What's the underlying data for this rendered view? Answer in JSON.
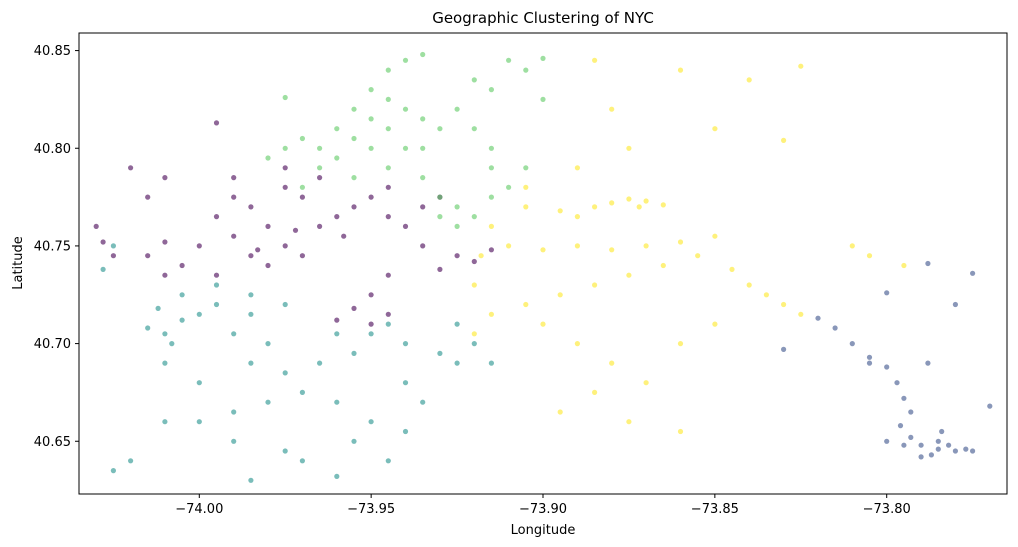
{
  "chart_data": {
    "type": "scatter",
    "title": "Geographic Clustering of NYC",
    "xlabel": "Longitude",
    "ylabel": "Latitude",
    "xlim": [
      -74.035,
      -73.765
    ],
    "ylim": [
      40.623,
      40.859
    ],
    "xticks": [
      -74.0,
      -73.95,
      -73.9,
      -73.85,
      -73.8
    ],
    "xtick_labels": [
      "−74.00",
      "−73.95",
      "−73.90",
      "−73.85",
      "−73.80"
    ],
    "yticks": [
      40.65,
      40.7,
      40.75,
      40.8,
      40.85
    ],
    "ytick_labels": [
      "40.65",
      "40.70",
      "40.75",
      "40.80",
      "40.85"
    ],
    "grid": false,
    "legend": "none",
    "point_opacity": 0.6,
    "series": [
      {
        "name": "cluster-0",
        "color": "#440154",
        "points": [
          [
            -73.99,
            40.775
          ],
          [
            -73.985,
            40.77
          ],
          [
            -73.975,
            40.78
          ],
          [
            -73.97,
            40.775
          ],
          [
            -73.995,
            40.765
          ],
          [
            -73.98,
            40.76
          ],
          [
            -73.99,
            40.755
          ],
          [
            -74.0,
            40.75
          ],
          [
            -73.985,
            40.745
          ],
          [
            -73.975,
            40.75
          ],
          [
            -73.965,
            40.76
          ],
          [
            -73.96,
            40.765
          ],
          [
            -74.005,
            40.74
          ],
          [
            -73.995,
            40.735
          ],
          [
            -74.01,
            40.735
          ],
          [
            -73.98,
            40.74
          ],
          [
            -73.97,
            40.745
          ],
          [
            -73.955,
            40.77
          ],
          [
            -73.95,
            40.775
          ],
          [
            -73.945,
            40.78
          ],
          [
            -73.965,
            40.785
          ],
          [
            -73.975,
            40.79
          ],
          [
            -74.015,
            40.745
          ],
          [
            -74.01,
            40.752
          ],
          [
            -73.99,
            40.785
          ],
          [
            -73.958,
            40.755
          ],
          [
            -73.945,
            40.765
          ],
          [
            -73.935,
            40.77
          ],
          [
            -73.94,
            40.76
          ],
          [
            -73.93,
            40.775
          ],
          [
            -73.925,
            40.745
          ],
          [
            -73.92,
            40.742
          ],
          [
            -73.93,
            40.738
          ],
          [
            -73.935,
            40.75
          ],
          [
            -73.915,
            40.748
          ],
          [
            -73.945,
            40.735
          ],
          [
            -73.95,
            40.725
          ],
          [
            -73.955,
            40.718
          ],
          [
            -73.95,
            40.71
          ],
          [
            -73.945,
            40.715
          ],
          [
            -73.96,
            40.712
          ],
          [
            -74.03,
            40.76
          ],
          [
            -74.025,
            40.745
          ],
          [
            -74.02,
            40.79
          ],
          [
            -74.015,
            40.775
          ],
          [
            -74.01,
            40.785
          ],
          [
            -73.995,
            40.813
          ],
          [
            -74.028,
            40.752
          ],
          [
            -73.983,
            40.748
          ],
          [
            -73.972,
            40.758
          ]
        ]
      },
      {
        "name": "cluster-1",
        "color": "#3b528b",
        "points": [
          [
            -73.82,
            40.713
          ],
          [
            -73.815,
            40.708
          ],
          [
            -73.81,
            40.7
          ],
          [
            -73.805,
            40.693
          ],
          [
            -73.8,
            40.688
          ],
          [
            -73.797,
            40.68
          ],
          [
            -73.795,
            40.672
          ],
          [
            -73.793,
            40.665
          ],
          [
            -73.796,
            40.658
          ],
          [
            -73.793,
            40.652
          ],
          [
            -73.79,
            40.648
          ],
          [
            -73.785,
            40.646
          ],
          [
            -73.78,
            40.645
          ],
          [
            -73.777,
            40.646
          ],
          [
            -73.782,
            40.648
          ],
          [
            -73.787,
            40.643
          ],
          [
            -73.775,
            40.645
          ],
          [
            -73.79,
            40.642
          ],
          [
            -73.8,
            40.65
          ],
          [
            -73.785,
            40.65
          ],
          [
            -73.795,
            40.648
          ],
          [
            -73.77,
            40.668
          ],
          [
            -73.775,
            40.736
          ],
          [
            -73.788,
            40.741
          ],
          [
            -73.78,
            40.72
          ],
          [
            -73.8,
            40.726
          ],
          [
            -73.805,
            40.69
          ],
          [
            -73.83,
            40.697
          ],
          [
            -73.788,
            40.69
          ],
          [
            -73.784,
            40.655
          ]
        ]
      },
      {
        "name": "cluster-2",
        "color": "#21918c",
        "points": [
          [
            -74.015,
            40.708
          ],
          [
            -74.01,
            40.705
          ],
          [
            -74.005,
            40.712
          ],
          [
            -74.0,
            40.715
          ],
          [
            -73.995,
            40.72
          ],
          [
            -74.012,
            40.718
          ],
          [
            -74.005,
            40.725
          ],
          [
            -73.995,
            40.73
          ],
          [
            -73.985,
            40.725
          ],
          [
            -73.975,
            40.72
          ],
          [
            -73.985,
            40.715
          ],
          [
            -74.008,
            40.7
          ],
          [
            -73.99,
            40.705
          ],
          [
            -73.98,
            40.7
          ],
          [
            -73.985,
            40.69
          ],
          [
            -73.975,
            40.685
          ],
          [
            -73.965,
            40.69
          ],
          [
            -73.955,
            40.695
          ],
          [
            -73.95,
            40.705
          ],
          [
            -73.94,
            40.7
          ],
          [
            -73.93,
            40.695
          ],
          [
            -73.925,
            40.69
          ],
          [
            -73.945,
            40.71
          ],
          [
            -73.96,
            40.705
          ],
          [
            -73.97,
            40.675
          ],
          [
            -73.98,
            40.67
          ],
          [
            -73.99,
            40.665
          ],
          [
            -74.0,
            40.66
          ],
          [
            -73.96,
            40.67
          ],
          [
            -73.95,
            40.66
          ],
          [
            -73.955,
            40.65
          ],
          [
            -73.94,
            40.68
          ],
          [
            -73.935,
            40.67
          ],
          [
            -73.945,
            40.64
          ],
          [
            -73.97,
            40.64
          ],
          [
            -73.99,
            40.65
          ],
          [
            -74.01,
            40.66
          ],
          [
            -74.02,
            40.64
          ],
          [
            -74.025,
            40.635
          ],
          [
            -74.0,
            40.68
          ],
          [
            -74.01,
            40.69
          ],
          [
            -73.92,
            40.7
          ],
          [
            -73.915,
            40.69
          ],
          [
            -73.925,
            40.71
          ],
          [
            -74.028,
            40.738
          ],
          [
            -74.025,
            40.75
          ],
          [
            -73.985,
            40.63
          ],
          [
            -73.96,
            40.632
          ],
          [
            -73.975,
            40.645
          ],
          [
            -73.94,
            40.655
          ]
        ]
      },
      {
        "name": "cluster-3",
        "color": "#5ec962",
        "points": [
          [
            -73.945,
            40.84
          ],
          [
            -73.94,
            40.845
          ],
          [
            -73.935,
            40.848
          ],
          [
            -73.95,
            40.83
          ],
          [
            -73.945,
            40.825
          ],
          [
            -73.955,
            40.82
          ],
          [
            -73.95,
            40.815
          ],
          [
            -73.96,
            40.81
          ],
          [
            -73.955,
            40.805
          ],
          [
            -73.965,
            40.8
          ],
          [
            -73.96,
            40.795
          ],
          [
            -73.97,
            40.805
          ],
          [
            -73.975,
            40.8
          ],
          [
            -73.98,
            40.795
          ],
          [
            -73.95,
            40.8
          ],
          [
            -73.945,
            40.81
          ],
          [
            -73.94,
            40.82
          ],
          [
            -73.935,
            40.815
          ],
          [
            -73.93,
            40.81
          ],
          [
            -73.94,
            40.8
          ],
          [
            -73.945,
            40.79
          ],
          [
            -73.935,
            40.785
          ],
          [
            -73.93,
            40.775
          ],
          [
            -73.925,
            40.77
          ],
          [
            -73.92,
            40.765
          ],
          [
            -73.915,
            40.775
          ],
          [
            -73.925,
            40.76
          ],
          [
            -73.93,
            40.765
          ],
          [
            -73.91,
            40.78
          ],
          [
            -73.905,
            40.79
          ],
          [
            -73.915,
            40.8
          ],
          [
            -73.92,
            40.81
          ],
          [
            -73.925,
            40.82
          ],
          [
            -73.915,
            40.83
          ],
          [
            -73.92,
            40.835
          ],
          [
            -73.905,
            40.84
          ],
          [
            -73.9,
            40.846
          ],
          [
            -73.91,
            40.845
          ],
          [
            -73.9,
            40.825
          ],
          [
            -73.955,
            40.785
          ],
          [
            -73.965,
            40.79
          ],
          [
            -73.97,
            40.78
          ],
          [
            -73.975,
            40.826
          ],
          [
            -73.915,
            40.79
          ],
          [
            -73.935,
            40.8
          ]
        ]
      },
      {
        "name": "cluster-4",
        "color": "#fde725",
        "points": [
          [
            -73.915,
            40.76
          ],
          [
            -73.905,
            40.77
          ],
          [
            -73.895,
            40.768
          ],
          [
            -73.89,
            40.765
          ],
          [
            -73.885,
            40.77
          ],
          [
            -73.88,
            40.772
          ],
          [
            -73.875,
            40.774
          ],
          [
            -73.87,
            40.773
          ],
          [
            -73.865,
            40.771
          ],
          [
            -73.872,
            40.77
          ],
          [
            -73.91,
            40.75
          ],
          [
            -73.9,
            40.748
          ],
          [
            -73.89,
            40.75
          ],
          [
            -73.88,
            40.748
          ],
          [
            -73.87,
            40.75
          ],
          [
            -73.86,
            40.752
          ],
          [
            -73.85,
            40.755
          ],
          [
            -73.855,
            40.745
          ],
          [
            -73.845,
            40.738
          ],
          [
            -73.84,
            40.73
          ],
          [
            -73.835,
            40.725
          ],
          [
            -73.83,
            40.72
          ],
          [
            -73.825,
            40.715
          ],
          [
            -73.865,
            40.74
          ],
          [
            -73.875,
            40.735
          ],
          [
            -73.885,
            40.73
          ],
          [
            -73.895,
            40.725
          ],
          [
            -73.905,
            40.72
          ],
          [
            -73.915,
            40.715
          ],
          [
            -73.92,
            40.705
          ],
          [
            -73.9,
            40.71
          ],
          [
            -73.89,
            40.7
          ],
          [
            -73.88,
            40.69
          ],
          [
            -73.87,
            40.68
          ],
          [
            -73.86,
            40.7
          ],
          [
            -73.85,
            40.71
          ],
          [
            -73.895,
            40.665
          ],
          [
            -73.885,
            40.675
          ],
          [
            -73.92,
            40.73
          ],
          [
            -73.918,
            40.745
          ],
          [
            -73.905,
            40.78
          ],
          [
            -73.89,
            40.79
          ],
          [
            -73.88,
            40.82
          ],
          [
            -73.875,
            40.8
          ],
          [
            -73.85,
            40.81
          ],
          [
            -73.84,
            40.835
          ],
          [
            -73.86,
            40.84
          ],
          [
            -73.885,
            40.845
          ],
          [
            -73.83,
            40.804
          ],
          [
            -73.825,
            40.842
          ],
          [
            -73.81,
            40.75
          ],
          [
            -73.805,
            40.745
          ],
          [
            -73.795,
            40.74
          ],
          [
            -73.875,
            40.66
          ],
          [
            -73.86,
            40.655
          ]
        ]
      }
    ]
  }
}
